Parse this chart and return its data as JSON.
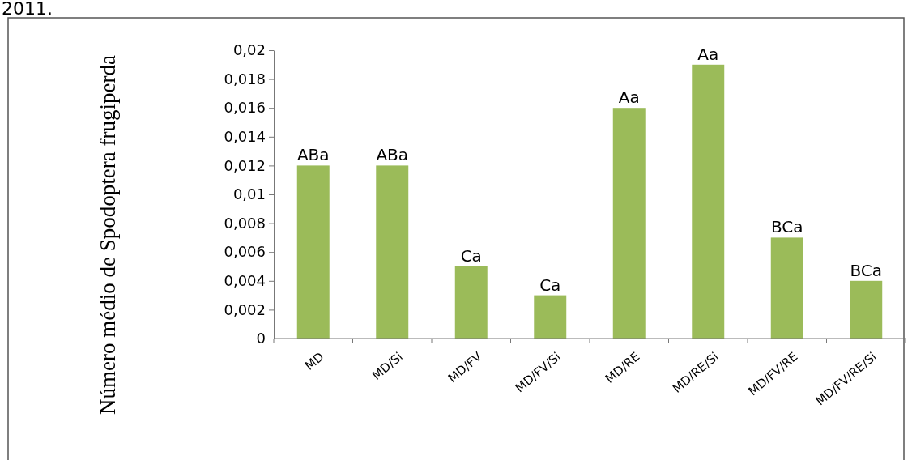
{
  "chart_data": {
    "type": "bar",
    "ylabel": "Número médio de Spodoptera frugiperda",
    "annotations": [
      "2011."
    ],
    "categories": [
      "MD",
      "MD/Si",
      "MD/FV",
      "MD/FV/Si",
      "MD/RE",
      "MD/RE/Si",
      "MD/FV/RE",
      "MD/FV/RE/Si"
    ],
    "values": [
      0.012,
      0.012,
      0.005,
      0.003,
      0.016,
      0.019,
      0.007,
      0.004
    ],
    "value_labels": [
      "ABa",
      "ABa",
      "Ca",
      "Ca",
      "Aa",
      "Aa",
      "BCa",
      "BCa"
    ],
    "color": "#9bbb59",
    "ylim": [
      0,
      0.02
    ],
    "yticks": [
      0,
      {
        "value": 0.002,
        "label": "0,002"
      },
      {
        "value": 0.004,
        "label": "0,004"
      },
      {
        "value": 0.006,
        "label": "0,006"
      },
      {
        "value": 0.008,
        "label": "0,008"
      },
      {
        "value": 0.01,
        "label": "0,01"
      },
      {
        "value": 0.012,
        "label": "0,012"
      },
      {
        "value": 0.014,
        "label": "0,014"
      },
      {
        "value": 0.016,
        "label": "0,016"
      },
      {
        "value": 0.018,
        "label": "0,018"
      },
      {
        "value": 0.02,
        "label": "0,02"
      }
    ],
    "grid": false
  }
}
